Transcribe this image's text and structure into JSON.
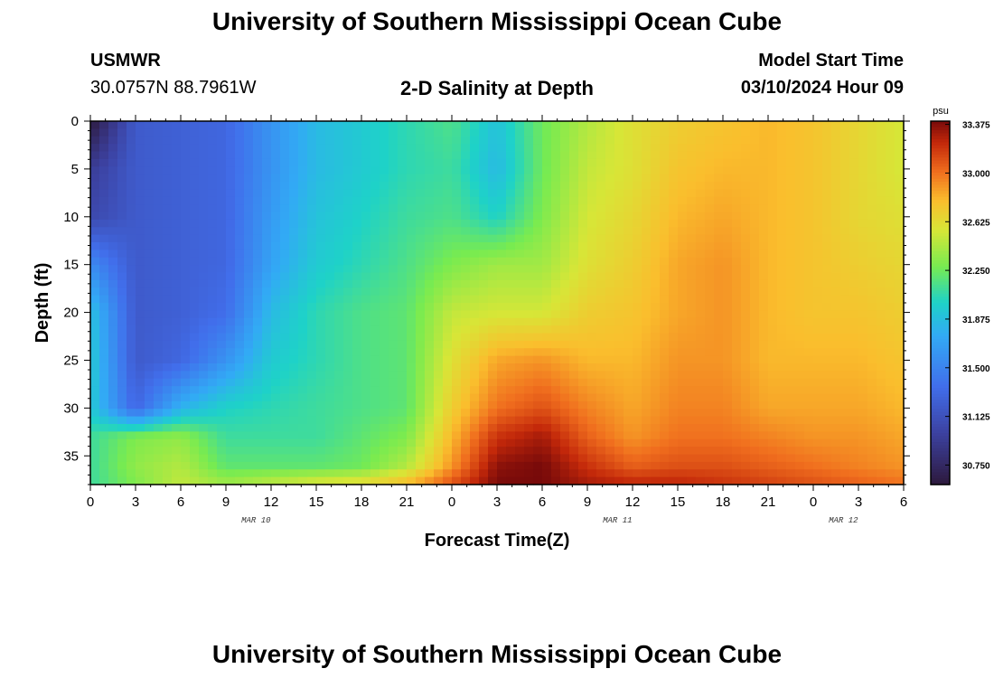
{
  "header": {
    "title": "University of Southern Mississippi Ocean Cube",
    "station_id": "USMWR",
    "coords": "30.0757N  88.7961W",
    "subtitle": "2-D Salinity at Depth",
    "model_start_label": "Model Start Time",
    "model_start_value": "03/10/2024 Hour 09"
  },
  "footer": {
    "title": "University of Southern Mississippi Ocean Cube"
  },
  "chart_data": {
    "type": "heatmap",
    "title": "2-D Salinity at Depth",
    "xlabel": "Forecast Time(Z)",
    "ylabel": "Depth (ft)",
    "x_tick_labels": [
      "0",
      "3",
      "6",
      "9",
      "12",
      "15",
      "18",
      "21",
      "0",
      "3",
      "6",
      "9",
      "12",
      "15",
      "18",
      "21",
      "0",
      "3",
      "6"
    ],
    "x_range_hours": [
      0,
      54
    ],
    "y_tick_values": [
      0,
      5,
      10,
      15,
      20,
      25,
      30,
      35
    ],
    "y_range": [
      0,
      38
    ],
    "y_inverted": true,
    "date_labels": [
      {
        "text": "MAR 10",
        "hour": 11
      },
      {
        "text": "MAR 11",
        "hour": 35
      },
      {
        "text": "MAR 12",
        "hour": 50
      }
    ],
    "colorbar": {
      "unit": "psu",
      "range": [
        30.6,
        33.4
      ],
      "tick_values": [
        30.75,
        31.125,
        31.5,
        31.875,
        32.25,
        32.625,
        33.0,
        33.375
      ],
      "tick_labels": [
        "30.750",
        "31.125",
        "31.500",
        "31.875",
        "32.250",
        "32.625",
        "33.000",
        "33.375"
      ]
    },
    "grid": {
      "times": [
        0,
        3,
        6,
        9,
        12,
        15,
        18,
        21,
        24,
        27,
        30,
        33,
        36,
        39,
        42,
        45,
        48,
        51,
        54
      ],
      "depths": [
        0,
        5,
        10,
        15,
        20,
        25,
        30,
        33,
        36,
        38
      ],
      "values": [
        [
          30.6,
          30.95,
          31.05,
          31.55,
          31.9,
          31.95,
          31.95,
          32.1,
          32.1,
          32.1
        ],
        [
          31.2,
          31.2,
          31.2,
          31.2,
          31.2,
          31.2,
          31.3,
          32.3,
          32.35,
          32.3
        ],
        [
          31.25,
          31.25,
          31.25,
          31.25,
          31.25,
          31.3,
          31.8,
          32.35,
          32.45,
          32.5
        ],
        [
          31.3,
          31.3,
          31.3,
          31.3,
          31.35,
          31.6,
          32.0,
          32.1,
          32.2,
          32.4
        ],
        [
          31.6,
          31.6,
          31.65,
          31.7,
          31.85,
          31.95,
          32.05,
          32.1,
          32.2,
          32.5
        ],
        [
          31.85,
          31.85,
          31.9,
          31.95,
          32.05,
          32.05,
          32.1,
          32.1,
          32.2,
          32.6
        ],
        [
          31.95,
          31.95,
          32.0,
          32.05,
          32.15,
          32.15,
          32.15,
          32.2,
          32.25,
          32.65
        ],
        [
          32.05,
          32.05,
          32.1,
          32.15,
          32.2,
          32.2,
          32.2,
          32.3,
          32.45,
          32.8
        ],
        [
          32.15,
          32.1,
          32.15,
          32.3,
          32.5,
          32.6,
          32.7,
          32.8,
          32.9,
          33.1
        ],
        [
          31.9,
          31.85,
          32.0,
          32.4,
          32.55,
          32.85,
          33.0,
          33.2,
          33.35,
          33.4
        ],
        [
          32.25,
          32.25,
          32.3,
          32.4,
          32.55,
          32.9,
          33.1,
          33.3,
          33.4,
          33.4
        ],
        [
          32.45,
          32.5,
          32.55,
          32.6,
          32.7,
          32.8,
          32.95,
          33.05,
          33.2,
          33.3
        ],
        [
          32.6,
          32.6,
          32.65,
          32.7,
          32.75,
          32.8,
          32.85,
          32.9,
          33.05,
          33.25
        ],
        [
          32.7,
          32.75,
          32.8,
          32.85,
          32.85,
          32.9,
          32.95,
          33.0,
          33.1,
          33.25
        ],
        [
          32.75,
          32.8,
          32.85,
          32.9,
          32.9,
          32.9,
          32.95,
          33.0,
          33.1,
          33.2
        ],
        [
          32.8,
          32.8,
          32.8,
          32.8,
          32.8,
          32.8,
          32.85,
          32.95,
          33.05,
          33.15
        ],
        [
          32.75,
          32.75,
          32.75,
          32.75,
          32.75,
          32.8,
          32.85,
          32.9,
          33.0,
          33.1
        ],
        [
          32.65,
          32.65,
          32.65,
          32.7,
          32.75,
          32.8,
          32.85,
          32.9,
          32.95,
          33.05
        ],
        [
          32.55,
          32.55,
          32.6,
          32.65,
          32.7,
          32.75,
          32.8,
          32.85,
          32.9,
          33.0
        ]
      ]
    }
  }
}
